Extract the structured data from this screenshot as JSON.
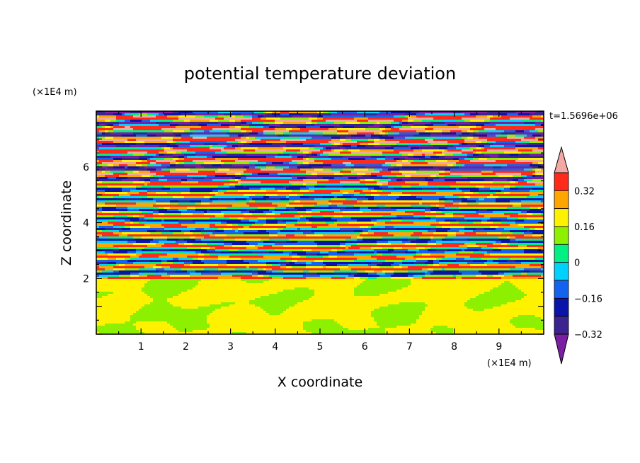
{
  "chart_data": {
    "type": "heatmap",
    "title": "potential temperature deviation",
    "xlabel": "X coordinate",
    "ylabel": "Z coordinate",
    "x_unit": "(×1E4 m)",
    "y_unit": "(×1E4 m)",
    "xlim": [
      0,
      10
    ],
    "ylim": [
      0,
      8
    ],
    "x_ticks": [
      1,
      2,
      3,
      4,
      5,
      6,
      7,
      8,
      9
    ],
    "y_ticks": [
      2,
      4,
      6
    ],
    "time_label": "t=1.5696e+06",
    "colorbar": {
      "levels": [
        -0.4,
        -0.32,
        -0.24,
        -0.16,
        -0.08,
        0,
        0.08,
        0.16,
        0.24,
        0.32,
        0.4
      ],
      "tick_values": [
        0.32,
        0.16,
        0,
        -0.16,
        -0.32
      ],
      "tick_labels": [
        "0.32",
        "0.16",
        "0",
        "−0.16",
        "−0.32"
      ],
      "extend": "both",
      "colors": [
        "#7a1fa2",
        "#3b2390",
        "#0a14a8",
        "#1463f0",
        "#00d2ff",
        "#00f084",
        "#8cf000",
        "#fff200",
        "#ffa500",
        "#ff2a1a",
        "#f4a8a4"
      ]
    },
    "field_description_regions": [
      {
        "z_range": [
          0,
          2
        ],
        "dominant_values": [
          0,
          0.08
        ]
      },
      {
        "z_range": [
          2,
          5.5
        ],
        "dominant_values": [
          -0.32,
          0.32
        ]
      },
      {
        "z_range": [
          5.5,
          8
        ],
        "dominant_values": [
          -0.4,
          0.4
        ]
      }
    ]
  }
}
